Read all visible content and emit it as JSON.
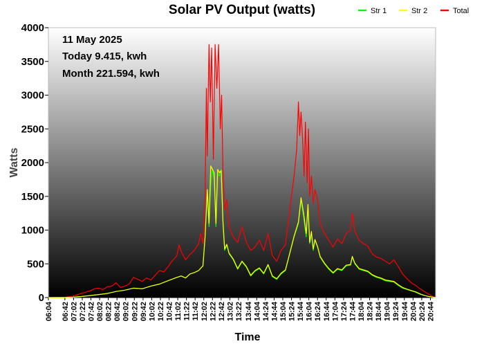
{
  "chart_data": {
    "type": "line",
    "title": "Solar PV Output (watts)",
    "xlabel": "Time",
    "ylabel": "Watts",
    "ylim": [
      0,
      4000
    ],
    "yticks": [
      0,
      500,
      1000,
      1500,
      2000,
      2500,
      3000,
      3500,
      4000
    ],
    "grid": false,
    "legend_position": "top-right",
    "background": "vertical gradient from white (top) to black (bottom)",
    "annotations": [
      "11 May 2025",
      "Today 9.415, kwh",
      "Month 221.594, kwh"
    ],
    "x_ticks": [
      "06:04",
      "06:42",
      "07:02",
      "07:22",
      "07:42",
      "08:02",
      "08:22",
      "08:42",
      "09:02",
      "09:22",
      "09:42",
      "10:02",
      "10:22",
      "10:42",
      "11:02",
      "11:22",
      "11:42",
      "12:02",
      "12:22",
      "12:42",
      "13:02",
      "13:22",
      "13:44",
      "14:04",
      "14:24",
      "14:44",
      "15:04",
      "15:24",
      "15:44",
      "16:04",
      "16:24",
      "16:44",
      "17:04",
      "17:24",
      "17:44",
      "18:04",
      "18:24",
      "18:44",
      "19:04",
      "19:24",
      "19:44",
      "20:04",
      "20:24",
      "20:44"
    ],
    "x_range": [
      "06:04",
      "20:56"
    ],
    "series": [
      {
        "name": "Str 1",
        "color": "#00ff00",
        "points": [
          [
            "06:04",
            0
          ],
          [
            "06:42",
            0
          ],
          [
            "07:00",
            5
          ],
          [
            "07:20",
            15
          ],
          [
            "07:40",
            30
          ],
          [
            "08:00",
            45
          ],
          [
            "08:20",
            60
          ],
          [
            "08:40",
            90
          ],
          [
            "09:00",
            110
          ],
          [
            "09:20",
            140
          ],
          [
            "09:40",
            130
          ],
          [
            "10:00",
            170
          ],
          [
            "10:20",
            200
          ],
          [
            "10:40",
            250
          ],
          [
            "11:00",
            300
          ],
          [
            "11:10",
            320
          ],
          [
            "11:20",
            290
          ],
          [
            "11:30",
            350
          ],
          [
            "11:40",
            370
          ],
          [
            "11:50",
            400
          ],
          [
            "12:00",
            470
          ],
          [
            "12:05",
            900
          ],
          [
            "12:10",
            1550
          ],
          [
            "12:14",
            1050
          ],
          [
            "12:18",
            1700
          ],
          [
            "12:22",
            1900
          ],
          [
            "12:26",
            1750
          ],
          [
            "12:30",
            1050
          ],
          [
            "12:34",
            1850
          ],
          [
            "12:38",
            1800
          ],
          [
            "12:42",
            1900
          ],
          [
            "12:46",
            1100
          ],
          [
            "12:50",
            700
          ],
          [
            "12:55",
            780
          ],
          [
            "13:00",
            650
          ],
          [
            "13:10",
            560
          ],
          [
            "13:20",
            420
          ],
          [
            "13:30",
            530
          ],
          [
            "13:40",
            450
          ],
          [
            "13:50",
            320
          ],
          [
            "14:00",
            390
          ],
          [
            "14:10",
            430
          ],
          [
            "14:20",
            350
          ],
          [
            "14:30",
            480
          ],
          [
            "14:40",
            310
          ],
          [
            "14:50",
            270
          ],
          [
            "15:00",
            350
          ],
          [
            "15:10",
            400
          ],
          [
            "15:20",
            650
          ],
          [
            "15:30",
            900
          ],
          [
            "15:40",
            1100
          ],
          [
            "15:46",
            1450
          ],
          [
            "15:52",
            1200
          ],
          [
            "15:58",
            900
          ],
          [
            "16:02",
            1350
          ],
          [
            "16:06",
            800
          ],
          [
            "16:10",
            950
          ],
          [
            "16:14",
            700
          ],
          [
            "16:18",
            850
          ],
          [
            "16:24",
            750
          ],
          [
            "16:30",
            600
          ],
          [
            "16:40",
            500
          ],
          [
            "16:50",
            420
          ],
          [
            "17:00",
            360
          ],
          [
            "17:10",
            420
          ],
          [
            "17:20",
            400
          ],
          [
            "17:30",
            470
          ],
          [
            "17:40",
            480
          ],
          [
            "17:44",
            600
          ],
          [
            "17:50",
            500
          ],
          [
            "18:00",
            420
          ],
          [
            "18:10",
            400
          ],
          [
            "18:20",
            380
          ],
          [
            "18:30",
            330
          ],
          [
            "18:40",
            300
          ],
          [
            "18:50",
            280
          ],
          [
            "19:00",
            250
          ],
          [
            "19:10",
            240
          ],
          [
            "19:20",
            230
          ],
          [
            "19:30",
            180
          ],
          [
            "19:40",
            140
          ],
          [
            "19:50",
            120
          ],
          [
            "20:00",
            100
          ],
          [
            "20:10",
            80
          ],
          [
            "20:20",
            50
          ],
          [
            "20:30",
            30
          ],
          [
            "20:40",
            15
          ],
          [
            "20:50",
            5
          ],
          [
            "20:56",
            0
          ]
        ]
      },
      {
        "name": "Str 2",
        "color": "#ffff00",
        "points": [
          [
            "06:04",
            0
          ],
          [
            "06:42",
            0
          ],
          [
            "07:00",
            5
          ],
          [
            "07:20",
            15
          ],
          [
            "07:40",
            30
          ],
          [
            "08:00",
            45
          ],
          [
            "08:20",
            60
          ],
          [
            "08:40",
            90
          ],
          [
            "09:00",
            110
          ],
          [
            "09:20",
            140
          ],
          [
            "09:40",
            130
          ],
          [
            "10:00",
            170
          ],
          [
            "10:20",
            200
          ],
          [
            "10:40",
            250
          ],
          [
            "11:00",
            300
          ],
          [
            "11:10",
            320
          ],
          [
            "11:20",
            290
          ],
          [
            "11:30",
            350
          ],
          [
            "11:40",
            370
          ],
          [
            "11:50",
            400
          ],
          [
            "12:00",
            470
          ],
          [
            "12:05",
            900
          ],
          [
            "12:10",
            1600
          ],
          [
            "12:14",
            1100
          ],
          [
            "12:18",
            1950
          ],
          [
            "12:22",
            1900
          ],
          [
            "12:26",
            1850
          ],
          [
            "12:30",
            1100
          ],
          [
            "12:34",
            1900
          ],
          [
            "12:38",
            1850
          ],
          [
            "12:42",
            1880
          ],
          [
            "12:46",
            1150
          ],
          [
            "12:50",
            720
          ],
          [
            "12:55",
            790
          ],
          [
            "13:00",
            660
          ],
          [
            "13:10",
            570
          ],
          [
            "13:20",
            430
          ],
          [
            "13:30",
            540
          ],
          [
            "13:40",
            460
          ],
          [
            "13:50",
            330
          ],
          [
            "14:00",
            400
          ],
          [
            "14:10",
            440
          ],
          [
            "14:20",
            360
          ],
          [
            "14:30",
            490
          ],
          [
            "14:40",
            320
          ],
          [
            "14:50",
            280
          ],
          [
            "15:00",
            360
          ],
          [
            "15:10",
            410
          ],
          [
            "15:20",
            660
          ],
          [
            "15:30",
            910
          ],
          [
            "15:40",
            1120
          ],
          [
            "15:46",
            1480
          ],
          [
            "15:52",
            1250
          ],
          [
            "15:58",
            950
          ],
          [
            "16:02",
            1380
          ],
          [
            "16:06",
            820
          ],
          [
            "16:10",
            980
          ],
          [
            "16:14",
            720
          ],
          [
            "16:18",
            860
          ],
          [
            "16:24",
            760
          ],
          [
            "16:30",
            610
          ],
          [
            "16:40",
            510
          ],
          [
            "16:50",
            430
          ],
          [
            "17:00",
            370
          ],
          [
            "17:10",
            430
          ],
          [
            "17:20",
            410
          ],
          [
            "17:30",
            480
          ],
          [
            "17:40",
            490
          ],
          [
            "17:44",
            610
          ],
          [
            "17:50",
            510
          ],
          [
            "18:00",
            430
          ],
          [
            "18:10",
            410
          ],
          [
            "18:20",
            390
          ],
          [
            "18:30",
            340
          ],
          [
            "18:40",
            310
          ],
          [
            "18:50",
            290
          ],
          [
            "19:00",
            260
          ],
          [
            "19:10",
            250
          ],
          [
            "19:20",
            240
          ],
          [
            "19:30",
            190
          ],
          [
            "19:40",
            150
          ],
          [
            "19:50",
            125
          ],
          [
            "20:00",
            105
          ],
          [
            "20:10",
            85
          ],
          [
            "20:20",
            55
          ],
          [
            "20:30",
            32
          ],
          [
            "20:40",
            16
          ],
          [
            "20:50",
            5
          ],
          [
            "20:56",
            0
          ]
        ]
      },
      {
        "name": "Total",
        "color": "#ff0000",
        "points": [
          [
            "06:04",
            0
          ],
          [
            "06:42",
            5
          ],
          [
            "07:00",
            20
          ],
          [
            "07:20",
            60
          ],
          [
            "07:40",
            100
          ],
          [
            "07:50",
            130
          ],
          [
            "08:00",
            140
          ],
          [
            "08:10",
            120
          ],
          [
            "08:20",
            160
          ],
          [
            "08:30",
            170
          ],
          [
            "08:40",
            220
          ],
          [
            "08:50",
            150
          ],
          [
            "09:00",
            170
          ],
          [
            "09:10",
            200
          ],
          [
            "09:20",
            300
          ],
          [
            "09:30",
            270
          ],
          [
            "09:40",
            240
          ],
          [
            "09:50",
            290
          ],
          [
            "10:00",
            260
          ],
          [
            "10:10",
            330
          ],
          [
            "10:20",
            400
          ],
          [
            "10:30",
            380
          ],
          [
            "10:40",
            460
          ],
          [
            "10:50",
            550
          ],
          [
            "11:00",
            620
          ],
          [
            "11:05",
            780
          ],
          [
            "11:10",
            680
          ],
          [
            "11:20",
            560
          ],
          [
            "11:30",
            640
          ],
          [
            "11:40",
            700
          ],
          [
            "11:50",
            800
          ],
          [
            "11:55",
            950
          ],
          [
            "12:00",
            800
          ],
          [
            "12:05",
            1500
          ],
          [
            "12:08",
            3100
          ],
          [
            "12:10",
            2100
          ],
          [
            "12:14",
            3750
          ],
          [
            "12:17",
            2900
          ],
          [
            "12:20",
            3700
          ],
          [
            "12:24",
            2050
          ],
          [
            "12:28",
            3750
          ],
          [
            "12:32",
            3100
          ],
          [
            "12:36",
            3750
          ],
          [
            "12:40",
            2500
          ],
          [
            "12:43",
            3000
          ],
          [
            "12:46",
            1900
          ],
          [
            "12:50",
            1300
          ],
          [
            "12:55",
            1450
          ],
          [
            "13:00",
            1050
          ],
          [
            "13:10",
            900
          ],
          [
            "13:20",
            820
          ],
          [
            "13:30",
            1050
          ],
          [
            "13:40",
            820
          ],
          [
            "13:50",
            700
          ],
          [
            "14:00",
            750
          ],
          [
            "14:10",
            850
          ],
          [
            "14:20",
            700
          ],
          [
            "14:30",
            950
          ],
          [
            "14:40",
            620
          ],
          [
            "14:50",
            540
          ],
          [
            "15:00",
            700
          ],
          [
            "15:10",
            780
          ],
          [
            "15:20",
            1300
          ],
          [
            "15:30",
            1800
          ],
          [
            "15:36",
            2200
          ],
          [
            "15:40",
            2900
          ],
          [
            "15:43",
            2400
          ],
          [
            "15:46",
            2750
          ],
          [
            "15:50",
            2300
          ],
          [
            "15:53",
            1800
          ],
          [
            "15:56",
            2600
          ],
          [
            "16:00",
            1700
          ],
          [
            "16:03",
            2500
          ],
          [
            "16:06",
            1500
          ],
          [
            "16:10",
            1800
          ],
          [
            "16:14",
            1400
          ],
          [
            "16:18",
            1600
          ],
          [
            "16:24",
            1450
          ],
          [
            "16:30",
            1100
          ],
          [
            "16:40",
            950
          ],
          [
            "16:50",
            850
          ],
          [
            "17:00",
            750
          ],
          [
            "17:10",
            870
          ],
          [
            "17:20",
            800
          ],
          [
            "17:30",
            950
          ],
          [
            "17:40",
            1000
          ],
          [
            "17:44",
            1250
          ],
          [
            "17:50",
            980
          ],
          [
            "18:00",
            850
          ],
          [
            "18:10",
            800
          ],
          [
            "18:20",
            760
          ],
          [
            "18:30",
            650
          ],
          [
            "18:40",
            600
          ],
          [
            "18:50",
            580
          ],
          [
            "19:00",
            540
          ],
          [
            "19:10",
            500
          ],
          [
            "19:20",
            560
          ],
          [
            "19:30",
            460
          ],
          [
            "19:40",
            350
          ],
          [
            "19:50",
            280
          ],
          [
            "20:00",
            220
          ],
          [
            "20:10",
            180
          ],
          [
            "20:20",
            130
          ],
          [
            "20:30",
            90
          ],
          [
            "20:40",
            50
          ],
          [
            "20:50",
            15
          ],
          [
            "20:56",
            0
          ]
        ]
      }
    ]
  }
}
